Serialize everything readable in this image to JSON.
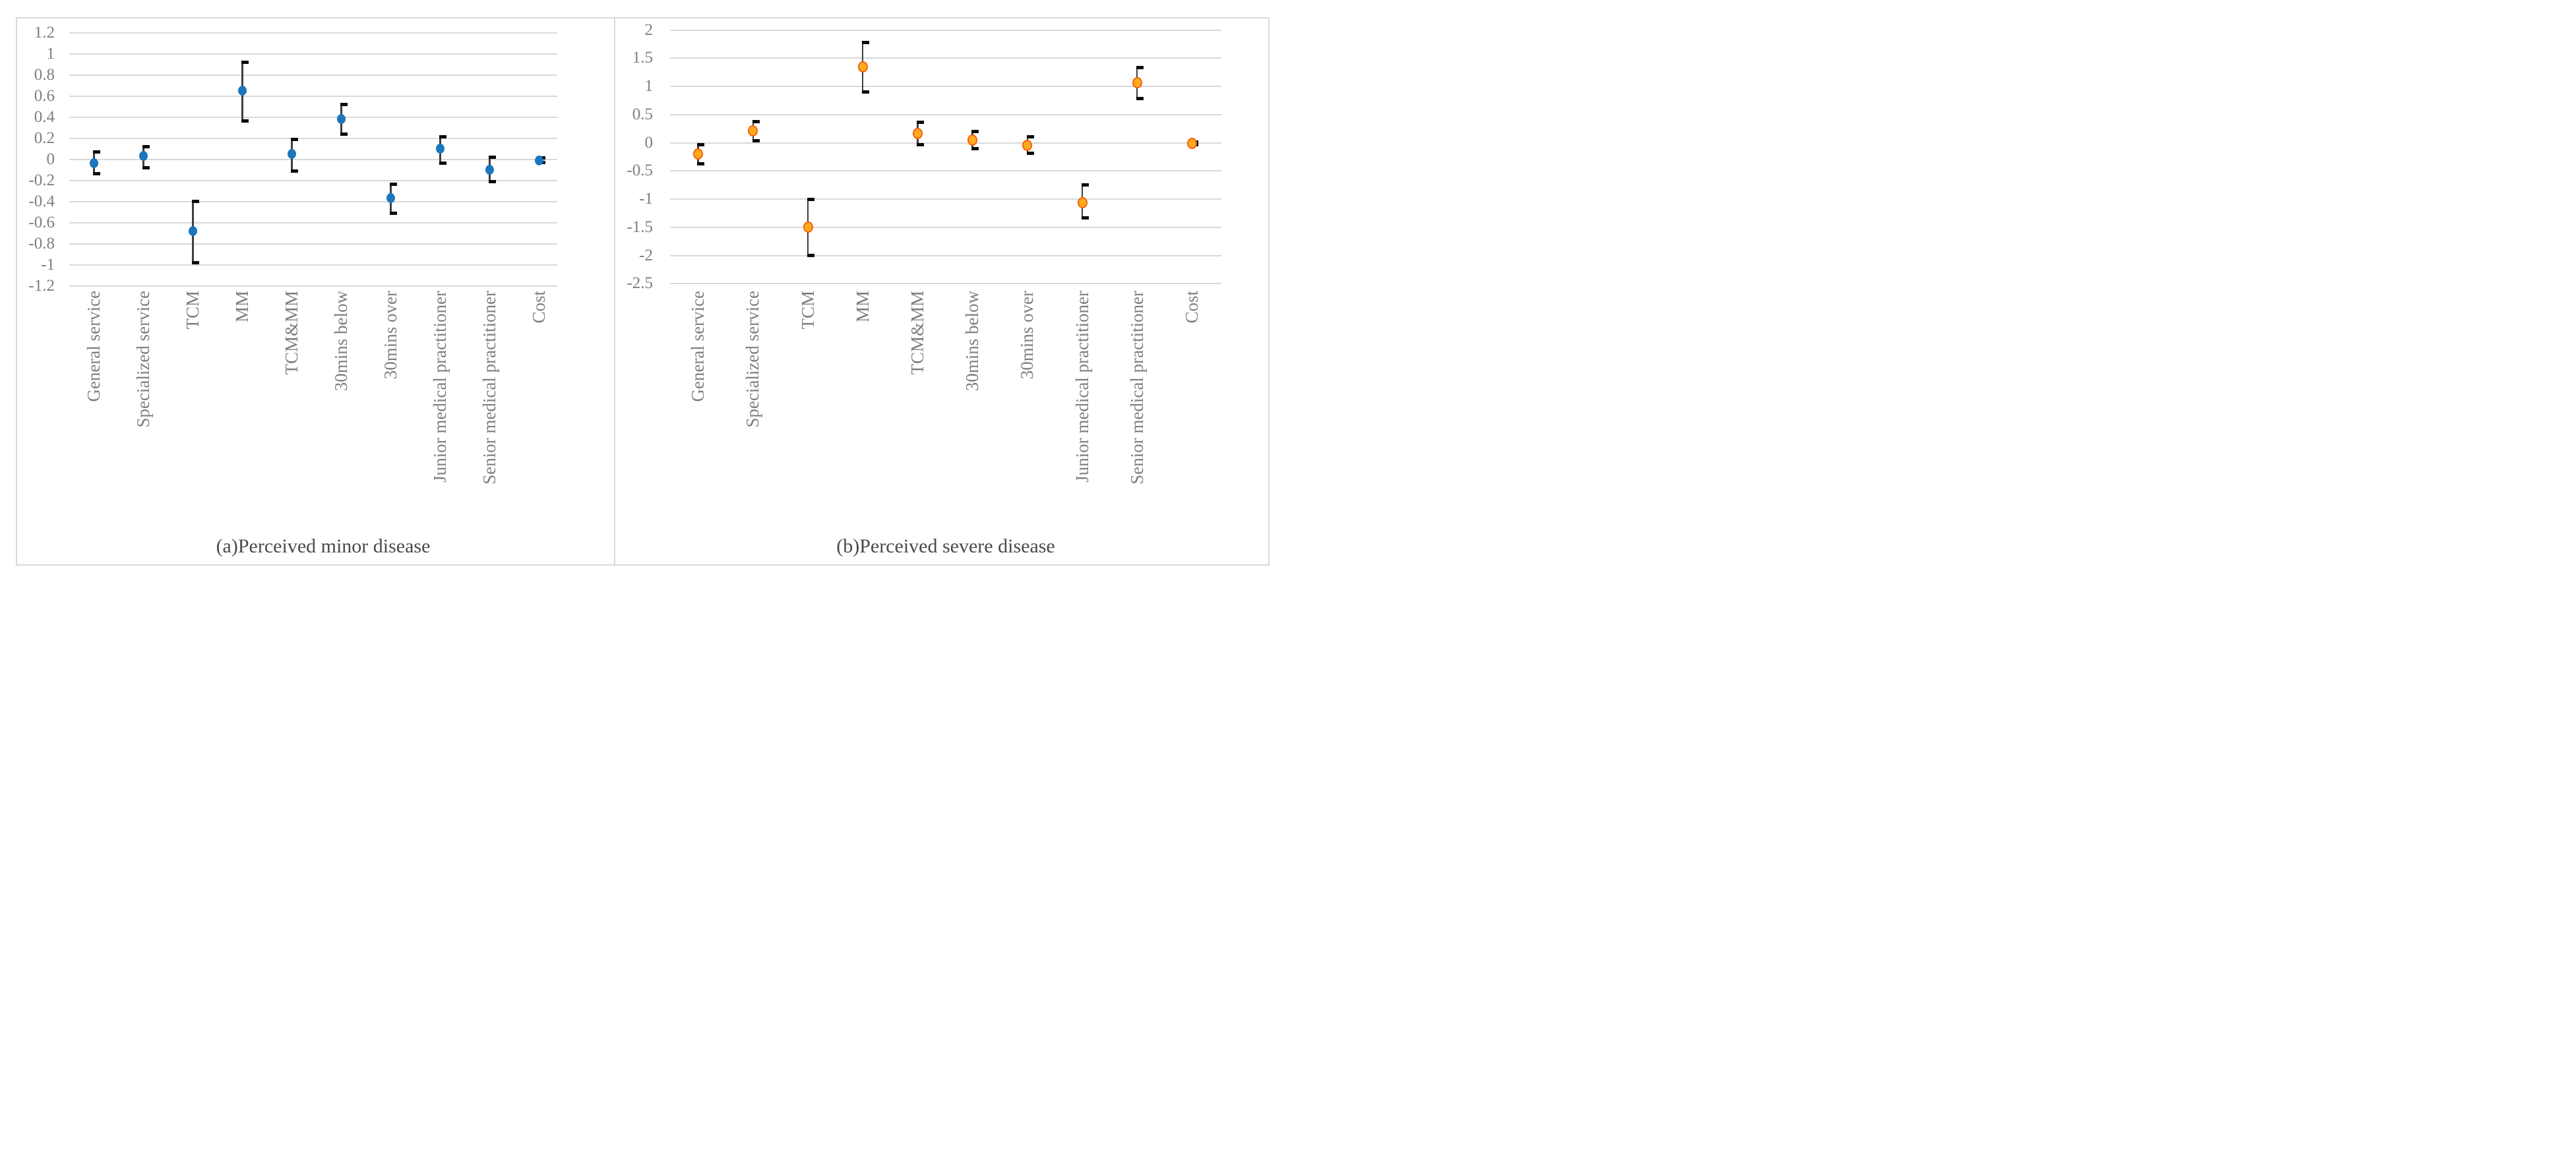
{
  "style": {
    "background": "#FFFFFF",
    "border_color": "#D9D9D9",
    "gridline_color": "#D9D9D9",
    "error_bar_color": "#3F3F3F",
    "error_cap_color": "#0A0A0A",
    "axis_text_color": "#7F7F7F",
    "caption_color": "#4A4A4A",
    "blue_marker": "#1B76BD",
    "orange_marker_fill": "#FFAB1E",
    "orange_marker_border": "#F4610C"
  },
  "chart_data": [
    {
      "type": "scatter",
      "panel": "a",
      "title": "(a)Perceived minor disease",
      "grid": true,
      "legend": "none",
      "ylim": [
        -1.2,
        1.2
      ],
      "ytick_labels": [
        "1.2",
        "1",
        "0.8",
        "0.6",
        "0.4",
        "0.2",
        "0",
        "-0.2",
        "-0.4",
        "-0.6",
        "-0.8",
        "-1",
        "-1.2"
      ],
      "categories": [
        "General service",
        "Specialized service",
        "TCM",
        "MM",
        "TCM&MM",
        "30mins below",
        "30mins over",
        "Junior medical practitioner",
        "Senior medical practitioner",
        "Cost"
      ],
      "series": [
        {
          "values": [
            -0.04,
            0.03,
            -0.68,
            0.65,
            0.05,
            0.38,
            -0.37,
            0.1,
            -0.1,
            -0.01
          ],
          "ci_low": [
            -0.14,
            -0.08,
            -0.98,
            0.36,
            -0.11,
            0.24,
            -0.51,
            -0.04,
            -0.21,
            -0.03
          ],
          "ci_high": [
            0.07,
            0.12,
            -0.4,
            0.92,
            0.19,
            0.52,
            -0.24,
            0.21,
            0.02,
            0.01
          ]
        }
      ],
      "marker": {
        "fill": "#1B76BD",
        "border": "#1B76BD"
      }
    },
    {
      "type": "scatter",
      "panel": "b",
      "title": "(b)Perceived severe disease",
      "grid": true,
      "legend": "none",
      "ylim": [
        -2.5,
        2
      ],
      "ytick_labels": [
        "2",
        "1.5",
        "1",
        "0.5",
        "0",
        "-0.5",
        "-1",
        "-1.5",
        "-2",
        "-2.5"
      ],
      "categories": [
        "General service",
        "Specialized service",
        "TCM",
        "MM",
        "TCM&MM",
        "30mins below",
        "30mins over",
        "Junior medical practitioner",
        "Senior medical practitioner",
        "Cost"
      ],
      "series": [
        {
          "values": [
            -0.2,
            0.21,
            -1.5,
            1.35,
            0.16,
            0.05,
            -0.05,
            -1.06,
            1.07,
            -0.01
          ],
          "ci_low": [
            -0.37,
            0.04,
            -2.0,
            0.9,
            -0.04,
            -0.1,
            -0.19,
            -1.33,
            0.78,
            -0.03
          ],
          "ci_high": [
            -0.04,
            0.37,
            -1.0,
            1.78,
            0.36,
            0.2,
            0.1,
            -0.75,
            1.33,
            0.01
          ]
        }
      ],
      "marker": {
        "fill": "#FFAB1E",
        "border": "#F4610C"
      }
    }
  ]
}
